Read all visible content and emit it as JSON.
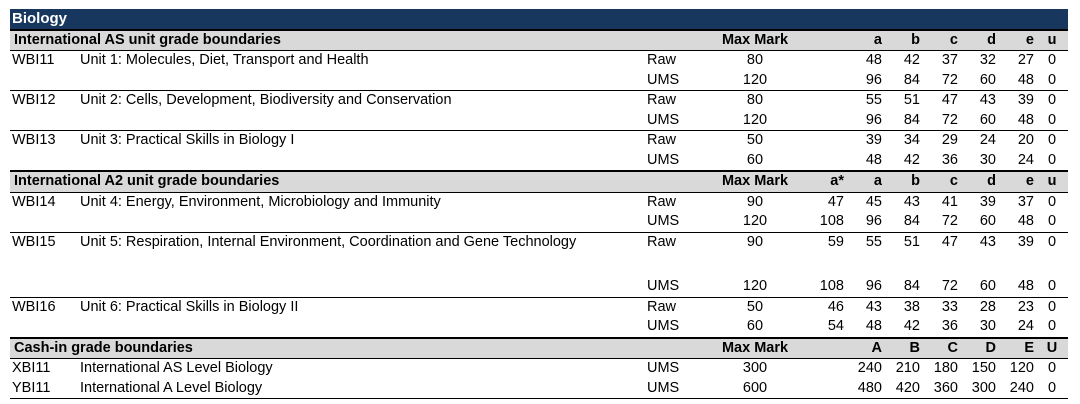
{
  "title": "Biology",
  "sections": [
    {
      "label": "International AS unit grade boundaries",
      "headers": {
        "max": "Max Mark",
        "astar": "",
        "a": "a",
        "b": "b",
        "c": "c",
        "d": "d",
        "e": "e",
        "u": "u"
      },
      "units": [
        {
          "code": "WBI11",
          "name": "Unit 1: Molecules, Diet, Transport and Health",
          "rows": [
            {
              "type": "Raw",
              "max": "80",
              "astar": "",
              "a": "48",
              "b": "42",
              "c": "37",
              "d": "32",
              "e": "27",
              "u": "0"
            },
            {
              "type": "UMS",
              "max": "120",
              "astar": "",
              "a": "96",
              "b": "84",
              "c": "72",
              "d": "60",
              "e": "48",
              "u": "0"
            }
          ]
        },
        {
          "code": "WBI12",
          "name": "Unit 2: Cells, Development, Biodiversity and Conservation",
          "rows": [
            {
              "type": "Raw",
              "max": "80",
              "astar": "",
              "a": "55",
              "b": "51",
              "c": "47",
              "d": "43",
              "e": "39",
              "u": "0"
            },
            {
              "type": "UMS",
              "max": "120",
              "astar": "",
              "a": "96",
              "b": "84",
              "c": "72",
              "d": "60",
              "e": "48",
              "u": "0"
            }
          ]
        },
        {
          "code": "WBI13",
          "name": "Unit 3: Practical Skills in Biology I",
          "rows": [
            {
              "type": "Raw",
              "max": "50",
              "astar": "",
              "a": "39",
              "b": "34",
              "c": "29",
              "d": "24",
              "e": "20",
              "u": "0"
            },
            {
              "type": "UMS",
              "max": "60",
              "astar": "",
              "a": "48",
              "b": "42",
              "c": "36",
              "d": "30",
              "e": "24",
              "u": "0"
            }
          ]
        }
      ]
    },
    {
      "label": "International A2 unit grade boundaries",
      "headers": {
        "max": "Max Mark",
        "astar": "a*",
        "a": "a",
        "b": "b",
        "c": "c",
        "d": "d",
        "e": "e",
        "u": "u"
      },
      "units": [
        {
          "code": "WBI14",
          "name": "Unit 4: Energy, Environment, Microbiology and Immunity",
          "rows": [
            {
              "type": "Raw",
              "max": "90",
              "astar": "47",
              "a": "45",
              "b": "43",
              "c": "41",
              "d": "39",
              "e": "37",
              "u": "0"
            },
            {
              "type": "UMS",
              "max": "120",
              "astar": "108",
              "a": "96",
              "b": "84",
              "c": "72",
              "d": "60",
              "e": "48",
              "u": "0"
            }
          ]
        },
        {
          "code": "WBI15",
          "name": "Unit 5: Respiration, Internal Environment, Coordination and Gene Technology",
          "rows": [
            {
              "type": "Raw",
              "max": "90",
              "astar": "59",
              "a": "55",
              "b": "51",
              "c": "47",
              "d": "43",
              "e": "39",
              "u": "0"
            },
            {
              "type": "UMS",
              "max": "120",
              "astar": "108",
              "a": "96",
              "b": "84",
              "c": "72",
              "d": "60",
              "e": "48",
              "u": "0"
            }
          ]
        },
        {
          "code": "WBI16",
          "name": "Unit 6: Practical Skills in Biology II",
          "rows": [
            {
              "type": "Raw",
              "max": "50",
              "astar": "46",
              "a": "43",
              "b": "38",
              "c": "33",
              "d": "28",
              "e": "23",
              "u": "0"
            },
            {
              "type": "UMS",
              "max": "60",
              "astar": "54",
              "a": "48",
              "b": "42",
              "c": "36",
              "d": "30",
              "e": "24",
              "u": "0"
            }
          ]
        }
      ]
    }
  ],
  "cashin": {
    "label": "Cash-in grade boundaries",
    "headers": {
      "max": "Max Mark",
      "astar": "",
      "a": "A",
      "b": "B",
      "c": "C",
      "d": "D",
      "e": "E",
      "u": "U"
    },
    "rows": [
      {
        "code": "XBI11",
        "name": "International AS Level Biology",
        "type": "UMS",
        "max": "300",
        "astar": "",
        "a": "240",
        "b": "210",
        "c": "180",
        "d": "150",
        "e": "120",
        "u": "0"
      },
      {
        "code": "YBI11",
        "name": "International A Level Biology",
        "type": "UMS",
        "max": "600",
        "astar": "",
        "a": "480",
        "b": "420",
        "c": "360",
        "d": "300",
        "e": "240",
        "u": "0"
      }
    ]
  }
}
